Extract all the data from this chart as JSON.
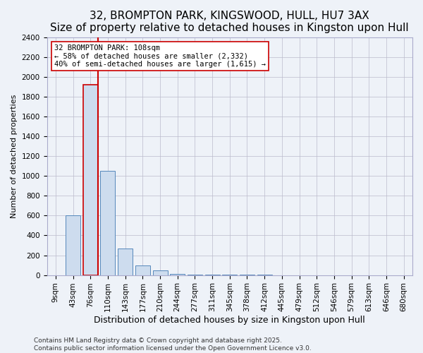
{
  "title": "32, BROMPTON PARK, KINGSWOOD, HULL, HU7 3AX",
  "subtitle": "Size of property relative to detached houses in Kingston upon Hull",
  "xlabel": "Distribution of detached houses by size in Kingston upon Hull",
  "ylabel": "Number of detached properties",
  "footer_line1": "Contains HM Land Registry data © Crown copyright and database right 2025.",
  "footer_line2": "Contains public sector information licensed under the Open Government Licence v3.0.",
  "categories": [
    "9sqm",
    "43sqm",
    "76sqm",
    "110sqm",
    "143sqm",
    "177sqm",
    "210sqm",
    "244sqm",
    "277sqm",
    "311sqm",
    "345sqm",
    "378sqm",
    "412sqm",
    "445sqm",
    "479sqm",
    "512sqm",
    "546sqm",
    "579sqm",
    "613sqm",
    "646sqm",
    "680sqm"
  ],
  "values": [
    0,
    600,
    1920,
    1050,
    270,
    100,
    45,
    12,
    5,
    3,
    2,
    1,
    1,
    0,
    0,
    0,
    0,
    0,
    0,
    0,
    0
  ],
  "highlight_bar_index": 2,
  "bar_color": "#cddcee",
  "bar_edge_color": "#5588bb",
  "highlight_edge_color": "#cc0000",
  "annotation_box_color": "#ffffff",
  "annotation_box_edge": "#cc0000",
  "annotation_line1": "32 BROMPTON PARK: 108sqm",
  "annotation_line2": "← 58% of detached houses are smaller (2,332)",
  "annotation_line3": "40% of semi-detached houses are larger (1,615) →",
  "property_line_x": 2.42,
  "ylim": [
    0,
    2400
  ],
  "yticks": [
    0,
    200,
    400,
    600,
    800,
    1000,
    1200,
    1400,
    1600,
    1800,
    2000,
    2200,
    2400
  ],
  "title_fontsize": 11,
  "xlabel_fontsize": 9,
  "ylabel_fontsize": 8,
  "tick_fontsize": 7.5,
  "annotation_fontsize": 7.5,
  "footer_fontsize": 6.5,
  "background_color": "#eef2f8"
}
